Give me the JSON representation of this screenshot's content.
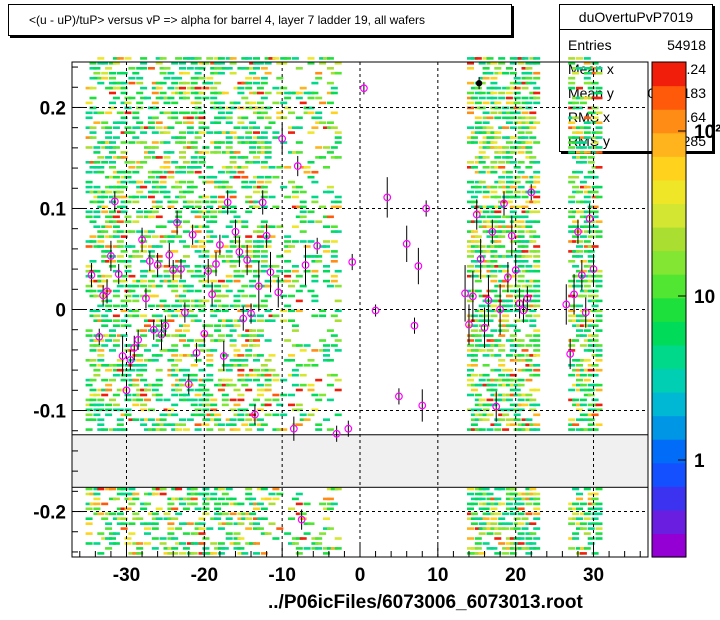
{
  "title": "<(u - uP)/tuP> versus   vP => alpha for barrel 4, layer 7 ladder 19, all wafers",
  "footer": "../P06icFiles/6073006_6073013.root",
  "stats": {
    "name": "duOvertuPvP7019",
    "rows": [
      {
        "label": "Entries",
        "value": "54918"
      },
      {
        "label": "Mean x",
        "value": "-12.24"
      },
      {
        "label": "Mean y",
        "value": "0.009183"
      },
      {
        "label": "RMS x",
        "value": "21.64"
      },
      {
        "label": "RMS y",
        "value": "0.1285"
      }
    ]
  },
  "chart_data": {
    "type": "heatmap",
    "title": "<(u - uP)/tuP> versus   vP => alpha for barrel 4, layer 7 ladder 19, all wafers",
    "xlabel": "",
    "ylabel": "",
    "xlim": [
      -37,
      37
    ],
    "ylim": [
      -0.245,
      0.245
    ],
    "x_ticks": [
      -30,
      -20,
      -10,
      0,
      10,
      20,
      30
    ],
    "y_ticks": [
      -0.2,
      -0.1,
      0,
      0.1,
      0.2
    ],
    "x_tick_labels": [
      "-30",
      "-20",
      "-10",
      "0",
      "10",
      "20",
      "30"
    ],
    "y_tick_labels": [
      "-0.2",
      "-0.1",
      "0",
      "0.1",
      "0.2"
    ],
    "grid": true,
    "colorbar": {
      "scale": "log",
      "labels": [
        "1",
        "10",
        "10²"
      ]
    },
    "empty_band_y": [
      -0.176,
      -0.124
    ],
    "profile_points": [
      {
        "x": -34.5,
        "y": 0.034,
        "err": 0.012
      },
      {
        "x": -33.5,
        "y": -0.027,
        "err": 0.008
      },
      {
        "x": -33.0,
        "y": 0.014,
        "err": 0.01
      },
      {
        "x": -32.5,
        "y": 0.018,
        "err": 0.012
      },
      {
        "x": -32.0,
        "y": 0.053,
        "err": 0.015
      },
      {
        "x": -31.5,
        "y": 0.107,
        "err": 0.01
      },
      {
        "x": -31.0,
        "y": 0.035,
        "err": 0.01
      },
      {
        "x": -30.5,
        "y": -0.046,
        "err": 0.02
      },
      {
        "x": -30.0,
        "y": -0.08,
        "err": 0.01
      },
      {
        "x": -29.5,
        "y": -0.05,
        "err": 0.01
      },
      {
        "x": -29.0,
        "y": -0.038,
        "err": 0.012
      },
      {
        "x": -28.5,
        "y": -0.03,
        "err": 0.01
      },
      {
        "x": -28.0,
        "y": 0.069,
        "err": 0.012
      },
      {
        "x": -27.5,
        "y": 0.011,
        "err": 0.01
      },
      {
        "x": -27.0,
        "y": 0.048,
        "err": 0.01
      },
      {
        "x": -26.5,
        "y": -0.02,
        "err": 0.01
      },
      {
        "x": -26.0,
        "y": 0.044,
        "err": 0.012
      },
      {
        "x": -25.5,
        "y": -0.025,
        "err": 0.015
      },
      {
        "x": -25.0,
        "y": -0.016,
        "err": 0.01
      },
      {
        "x": -24.5,
        "y": 0.054,
        "err": 0.012
      },
      {
        "x": -24.0,
        "y": 0.039,
        "err": 0.01
      },
      {
        "x": -23.5,
        "y": 0.086,
        "err": 0.012
      },
      {
        "x": -23.0,
        "y": 0.04,
        "err": 0.01
      },
      {
        "x": -22.5,
        "y": -0.003,
        "err": 0.01
      },
      {
        "x": -22.0,
        "y": -0.074,
        "err": 0.01
      },
      {
        "x": -21.5,
        "y": 0.074,
        "err": 0.01
      },
      {
        "x": -21.0,
        "y": -0.043,
        "err": 0.01
      },
      {
        "x": -20.0,
        "y": -0.024,
        "err": 0.01
      },
      {
        "x": -19.5,
        "y": 0.038,
        "err": 0.012
      },
      {
        "x": -19.0,
        "y": 0.015,
        "err": 0.012
      },
      {
        "x": -18.5,
        "y": 0.045,
        "err": 0.012
      },
      {
        "x": -18.0,
        "y": 0.064,
        "err": 0.01
      },
      {
        "x": -17.5,
        "y": -0.046,
        "err": 0.015
      },
      {
        "x": -17.0,
        "y": 0.106,
        "err": 0.012
      },
      {
        "x": -16.0,
        "y": 0.077,
        "err": 0.012
      },
      {
        "x": -15.5,
        "y": 0.057,
        "err": 0.015
      },
      {
        "x": -15.0,
        "y": -0.009,
        "err": 0.012
      },
      {
        "x": -14.5,
        "y": 0.049,
        "err": 0.015
      },
      {
        "x": -14.0,
        "y": -0.004,
        "err": 0.01
      },
      {
        "x": -13.5,
        "y": -0.104,
        "err": 0.01
      },
      {
        "x": -13.0,
        "y": 0.023,
        "err": 0.025
      },
      {
        "x": -12.5,
        "y": 0.106,
        "err": 0.012
      },
      {
        "x": -12.0,
        "y": 0.073,
        "err": 0.012
      },
      {
        "x": -11.5,
        "y": 0.037,
        "err": 0.02
      },
      {
        "x": -10.5,
        "y": 0.017,
        "err": 0.015
      },
      {
        "x": -10.0,
        "y": 0.169,
        "err": 0.015
      },
      {
        "x": -8.5,
        "y": -0.118,
        "err": 0.012
      },
      {
        "x": -8.0,
        "y": 0.142,
        "err": 0.01
      },
      {
        "x": -7.5,
        "y": -0.208,
        "err": 0.01
      },
      {
        "x": -7.0,
        "y": 0.044,
        "err": 0.02
      },
      {
        "x": -5.5,
        "y": 0.063,
        "err": 0.008
      },
      {
        "x": -3.0,
        "y": -0.123,
        "err": 0.008
      },
      {
        "x": -1.5,
        "y": -0.118,
        "err": 0.008
      },
      {
        "x": -1.0,
        "y": 0.047,
        "err": 0.008
      },
      {
        "x": 0.5,
        "y": 0.219,
        "err": 0.006
      },
      {
        "x": 2.0,
        "y": -0.001,
        "err": 0.006
      },
      {
        "x": 3.5,
        "y": 0.111,
        "err": 0.02
      },
      {
        "x": 5.0,
        "y": -0.086,
        "err": 0.008
      },
      {
        "x": 6.0,
        "y": 0.065,
        "err": 0.018
      },
      {
        "x": 7.0,
        "y": -0.016,
        "err": 0.008
      },
      {
        "x": 7.5,
        "y": 0.043,
        "err": 0.018
      },
      {
        "x": 8.0,
        "y": -0.095,
        "err": 0.016
      },
      {
        "x": 8.5,
        "y": 0.1,
        "err": 0.008
      },
      {
        "x": 13.5,
        "y": 0.016,
        "err": 0.028
      },
      {
        "x": 14.0,
        "y": -0.015,
        "err": 0.02
      },
      {
        "x": 14.5,
        "y": 0.013,
        "err": 0.025
      },
      {
        "x": 15.0,
        "y": 0.094,
        "err": 0.015
      },
      {
        "x": 15.5,
        "y": 0.05,
        "err": 0.02
      },
      {
        "x": 16.0,
        "y": -0.018,
        "err": 0.02
      },
      {
        "x": 16.5,
        "y": 0.009,
        "err": 0.025
      },
      {
        "x": 17.0,
        "y": 0.077,
        "err": 0.012
      },
      {
        "x": 17.5,
        "y": -0.096,
        "err": 0.015
      },
      {
        "x": 18.0,
        "y": 0.0,
        "err": 0.025
      },
      {
        "x": 18.5,
        "y": 0.105,
        "err": 0.012
      },
      {
        "x": 19.0,
        "y": 0.032,
        "err": 0.015
      },
      {
        "x": 19.5,
        "y": 0.073,
        "err": 0.02
      },
      {
        "x": 20.0,
        "y": 0.039,
        "err": 0.015
      },
      {
        "x": 20.5,
        "y": 0.006,
        "err": 0.015
      },
      {
        "x": 21.0,
        "y": -0.001,
        "err": 0.012
      },
      {
        "x": 21.5,
        "y": 0.011,
        "err": 0.012
      },
      {
        "x": 22.0,
        "y": 0.116,
        "err": 0.008
      },
      {
        "x": 26.5,
        "y": 0.005,
        "err": 0.02
      },
      {
        "x": 27.0,
        "y": -0.044,
        "err": 0.015
      },
      {
        "x": 27.5,
        "y": 0.015,
        "err": 0.02
      },
      {
        "x": 28.0,
        "y": 0.077,
        "err": 0.012
      },
      {
        "x": 28.5,
        "y": 0.034,
        "err": 0.015
      },
      {
        "x": 29.0,
        "y": -0.003,
        "err": 0.015
      },
      {
        "x": 29.5,
        "y": 0.09,
        "err": 0.015
      },
      {
        "x": 30.0,
        "y": 0.04,
        "err": 0.015
      }
    ],
    "black_point": {
      "x": 15.3,
      "y": 0.224,
      "err": 0.006
    }
  },
  "colors": {
    "palette": [
      "#9400d3",
      "#6a1ee0",
      "#3c33f0",
      "#1450ff",
      "#006cf8",
      "#0096e6",
      "#00b8d4",
      "#00cfb4",
      "#00d88a",
      "#00dc5a",
      "#1ee03c",
      "#50e632",
      "#82e632",
      "#aadf32",
      "#d2e632",
      "#f0e628",
      "#ffd21e",
      "#ffb41e",
      "#ff8c14",
      "#ff5a0a",
      "#f01e0a"
    ],
    "profile_marker": "#ff00ff"
  }
}
